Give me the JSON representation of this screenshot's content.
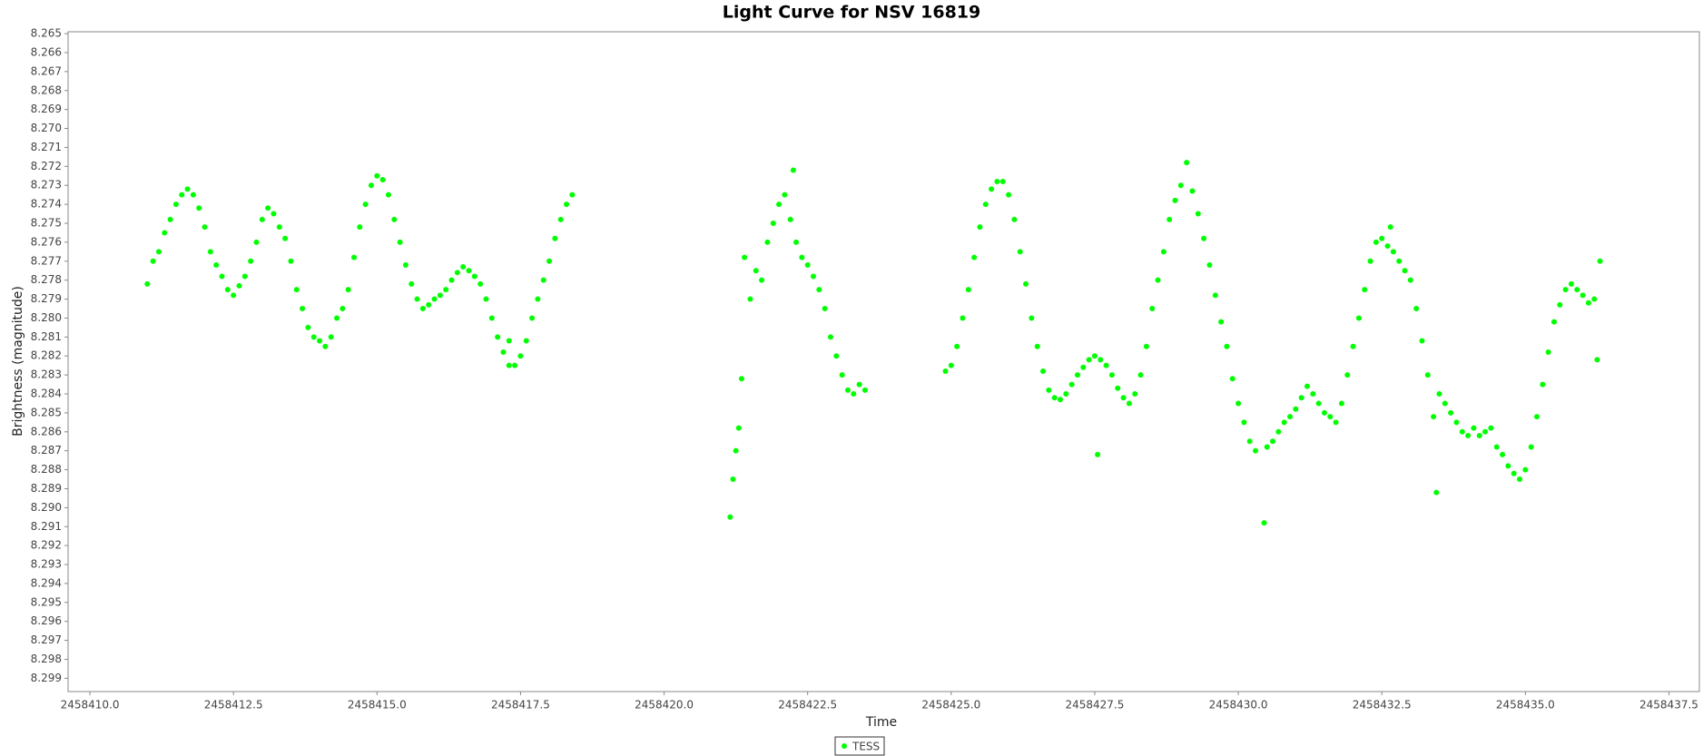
{
  "chart_data": {
    "type": "scatter",
    "title": "Light Curve for NSV 16819",
    "x_label": "Time",
    "y_label": "Brightness (magnitude)",
    "xlim": [
      2458409.62,
      2458438.03
    ],
    "ylim": [
      8.2649,
      8.2997
    ],
    "y_inverted": true,
    "grid": false,
    "xticks": [
      {
        "value": 2458410,
        "label": "2458410.0"
      },
      {
        "value": 2458412.5,
        "label": "2458412.5"
      },
      {
        "value": 2458415,
        "label": "2458415.0"
      },
      {
        "value": 2458417.5,
        "label": "2458417.5"
      },
      {
        "value": 2458420,
        "label": "2458420.0"
      },
      {
        "value": 2458422.5,
        "label": "2458422.5"
      },
      {
        "value": 2458425,
        "label": "2458425.0"
      },
      {
        "value": 2458427.5,
        "label": "2458427.5"
      },
      {
        "value": 2458430,
        "label": "2458430.0"
      },
      {
        "value": 2458432.5,
        "label": "2458432.5"
      },
      {
        "value": 2458435,
        "label": "2458435.0"
      },
      {
        "value": 2458437.5,
        "label": "2458437.5"
      }
    ],
    "yticks": [
      8.265,
      8.266,
      8.267,
      8.268,
      8.269,
      {
        "value": 8.27,
        "label": "8.270"
      },
      8.271,
      8.272,
      8.273,
      8.274,
      8.275,
      8.276,
      8.277,
      8.278,
      8.279,
      {
        "value": 8.28,
        "label": "8.280"
      },
      8.281,
      8.282,
      8.283,
      8.284,
      8.285,
      8.286,
      8.287,
      8.288,
      8.289,
      {
        "value": 8.29,
        "label": "8.290"
      },
      8.291,
      8.292,
      8.293,
      8.294,
      8.295,
      8.296,
      8.297,
      8.298,
      8.299
    ],
    "legend": "bottom",
    "series": [
      {
        "name": "TESS",
        "color": "#00ff00",
        "x": [
          2458411.0,
          2458411.1,
          2458411.2,
          2458411.3,
          2458411.4,
          2458411.5,
          2458411.6,
          2458411.7,
          2458411.8,
          2458411.9,
          2458412.0,
          2458412.1,
          2458412.2,
          2458412.3,
          2458412.4,
          2458412.5,
          2458412.6,
          2458412.7,
          2458412.8,
          2458412.9,
          2458413.0,
          2458413.1,
          2458413.2,
          2458413.3,
          2458413.4,
          2458413.5,
          2458413.6,
          2458413.7,
          2458413.8,
          2458413.9,
          2458414.0,
          2458414.1,
          2458414.2,
          2458414.3,
          2458414.4,
          2458414.5,
          2458414.6,
          2458414.7,
          2458414.8,
          2458414.9,
          2458415.0,
          2458415.1,
          2458415.2,
          2458415.3,
          2458415.4,
          2458415.5,
          2458415.6,
          2458415.7,
          2458415.8,
          2458415.9,
          2458416.0,
          2458416.1,
          2458416.2,
          2458416.3,
          2458416.4,
          2458416.5,
          2458416.6,
          2458416.7,
          2458416.8,
          2458416.9,
          2458417.0,
          2458417.1,
          2458417.2,
          2458417.3,
          2458417.4,
          2458417.5,
          2458417.6,
          2458417.7,
          2458417.8,
          2458417.9,
          2458418.0,
          2458418.1,
          2458418.2,
          2458418.3,
          2458418.4,
          2458417.3,
          2458421.15,
          2458421.2,
          2458421.25,
          2458421.3,
          2458421.35,
          2458421.4,
          2458421.5,
          2458421.6,
          2458421.7,
          2458421.8,
          2458421.9,
          2458422.0,
          2458422.1,
          2458422.2,
          2458422.25,
          2458422.3,
          2458422.4,
          2458422.5,
          2458422.6,
          2458422.7,
          2458422.8,
          2458422.9,
          2458423.0,
          2458423.1,
          2458423.2,
          2458423.3,
          2458423.4,
          2458423.5,
          2458424.9,
          2458425.0,
          2458425.1,
          2458425.2,
          2458425.3,
          2458425.4,
          2458425.5,
          2458425.6,
          2458425.7,
          2458425.8,
          2458425.9,
          2458426.0,
          2458426.1,
          2458426.2,
          2458426.3,
          2458426.4,
          2458426.5,
          2458426.6,
          2458426.7,
          2458426.8,
          2458426.9,
          2458427.0,
          2458427.1,
          2458427.2,
          2458427.3,
          2458427.4,
          2458427.5,
          2458427.55,
          2458427.6,
          2458427.7,
          2458427.8,
          2458427.9,
          2458428.0,
          2458428.1,
          2458428.2,
          2458428.3,
          2458428.4,
          2458428.5,
          2458428.6,
          2458428.7,
          2458428.8,
          2458428.9,
          2458429.0,
          2458429.1,
          2458429.2,
          2458429.3,
          2458429.4,
          2458429.5,
          2458429.6,
          2458429.7,
          2458429.8,
          2458429.9,
          2458430.0,
          2458430.1,
          2458430.2,
          2458430.3,
          2458430.45,
          2458430.5,
          2458430.6,
          2458430.7,
          2458430.8,
          2458430.9,
          2458431.0,
          2458431.1,
          2458431.2,
          2458431.3,
          2458431.4,
          2458431.5,
          2458431.6,
          2458431.7,
          2458431.8,
          2458431.9,
          2458432.0,
          2458432.1,
          2458432.2,
          2458432.3,
          2458432.4,
          2458432.5,
          2458432.6,
          2458432.65,
          2458432.7,
          2458432.8,
          2458432.9,
          2458433.0,
          2458433.1,
          2458433.2,
          2458433.3,
          2458433.4,
          2458433.45,
          2458433.5,
          2458433.6,
          2458433.7,
          2458433.8,
          2458433.9,
          2458434.0,
          2458434.1,
          2458434.2,
          2458434.3,
          2458434.4,
          2458434.5,
          2458434.6,
          2458434.7,
          2458434.8,
          2458434.9,
          2458435.0,
          2458435.1,
          2458435.2,
          2458435.3,
          2458435.4,
          2458435.5,
          2458435.6,
          2458435.7,
          2458435.8,
          2458435.9,
          2458436.0,
          2458436.1,
          2458436.2,
          2458436.25,
          2458436.3
        ],
        "values": [
          8.2782,
          8.277,
          8.2765,
          8.2755,
          8.2748,
          8.274,
          8.2735,
          8.2732,
          8.2735,
          8.2742,
          8.2752,
          8.2765,
          8.2772,
          8.2778,
          8.2785,
          8.2788,
          8.2783,
          8.2778,
          8.277,
          8.276,
          8.2748,
          8.2742,
          8.2745,
          8.2752,
          8.2758,
          8.277,
          8.2785,
          8.2795,
          8.2805,
          8.281,
          8.2812,
          8.2815,
          8.281,
          8.28,
          8.2795,
          8.2785,
          8.2768,
          8.2752,
          8.274,
          8.273,
          8.2725,
          8.2727,
          8.2735,
          8.2748,
          8.276,
          8.2772,
          8.2782,
          8.279,
          8.2795,
          8.2793,
          8.279,
          8.2788,
          8.2785,
          8.278,
          8.2776,
          8.2773,
          8.2775,
          8.2778,
          8.2782,
          8.279,
          8.28,
          8.281,
          8.2818,
          8.2825,
          8.2825,
          8.282,
          8.2812,
          8.28,
          8.279,
          8.278,
          8.277,
          8.2758,
          8.2748,
          8.274,
          8.2735,
          8.2812,
          8.2905,
          8.2885,
          8.287,
          8.2858,
          8.2832,
          8.2768,
          8.279,
          8.2775,
          8.278,
          8.276,
          8.275,
          8.274,
          8.2735,
          8.2748,
          8.2722,
          8.276,
          8.2768,
          8.2772,
          8.2778,
          8.2785,
          8.2795,
          8.281,
          8.282,
          8.283,
          8.2838,
          8.284,
          8.2835,
          8.2838,
          8.2828,
          8.2825,
          8.2815,
          8.28,
          8.2785,
          8.2768,
          8.2752,
          8.274,
          8.2732,
          8.2728,
          8.2728,
          8.2735,
          8.2748,
          8.2765,
          8.2782,
          8.28,
          8.2815,
          8.2828,
          8.2838,
          8.2842,
          8.2843,
          8.284,
          8.2835,
          8.283,
          8.2826,
          8.2822,
          8.282,
          8.2872,
          8.2822,
          8.2825,
          8.283,
          8.2837,
          8.2842,
          8.2845,
          8.284,
          8.283,
          8.2815,
          8.2795,
          8.278,
          8.2765,
          8.2748,
          8.2738,
          8.273,
          8.2718,
          8.2733,
          8.2745,
          8.2758,
          8.2772,
          8.2788,
          8.2802,
          8.2815,
          8.2832,
          8.2845,
          8.2855,
          8.2865,
          8.287,
          8.2908,
          8.2868,
          8.2865,
          8.286,
          8.2855,
          8.2852,
          8.2848,
          8.2842,
          8.2836,
          8.284,
          8.2845,
          8.285,
          8.2852,
          8.2855,
          8.2845,
          8.283,
          8.2815,
          8.28,
          8.2785,
          8.277,
          8.276,
          8.2758,
          8.2762,
          8.2752,
          8.2765,
          8.277,
          8.2775,
          8.278,
          8.2795,
          8.2812,
          8.283,
          8.2852,
          8.2892,
          8.284,
          8.2845,
          8.285,
          8.2855,
          8.286,
          8.2862,
          8.2858,
          8.2862,
          8.286,
          8.2858,
          8.2868,
          8.2872,
          8.2878,
          8.2882,
          8.2885,
          8.288,
          8.2868,
          8.2852,
          8.2835,
          8.2818,
          8.2802,
          8.2793,
          8.2785,
          8.2782,
          8.2785,
          8.2788,
          8.2792,
          8.279,
          8.2822,
          8.277
        ]
      }
    ]
  }
}
